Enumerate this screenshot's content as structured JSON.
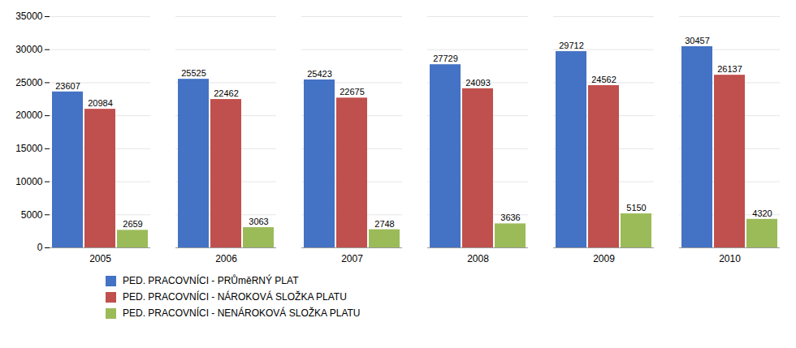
{
  "chart_data": {
    "type": "bar",
    "categories": [
      "2005",
      "2006",
      "2007",
      "2008",
      "2009",
      "2010"
    ],
    "series": [
      {
        "name": "PED. PRACOVNÍCI - PRŮměRNÝ PLAT",
        "color": "#4472C4",
        "values": [
          23607,
          25525,
          25423,
          27729,
          29712,
          30457
        ]
      },
      {
        "name": "PED. PRACOVNÍCI - NÁROKOVÁ SLOŽKA PLATU",
        "color": "#C0504D",
        "values": [
          20984,
          22462,
          22675,
          24093,
          24562,
          26137
        ]
      },
      {
        "name": "PED. PRACOVNÍCI - NENÁROKOVÁ SLOŽKA PLATU",
        "color": "#9BBB59",
        "values": [
          2659,
          3063,
          2748,
          3636,
          5150,
          4320
        ]
      }
    ],
    "ylim": [
      0,
      35000
    ],
    "yticks": [
      0,
      5000,
      10000,
      15000,
      20000,
      25000,
      30000,
      35000
    ],
    "grid": true,
    "data_labels": true,
    "legend": "bottom"
  }
}
